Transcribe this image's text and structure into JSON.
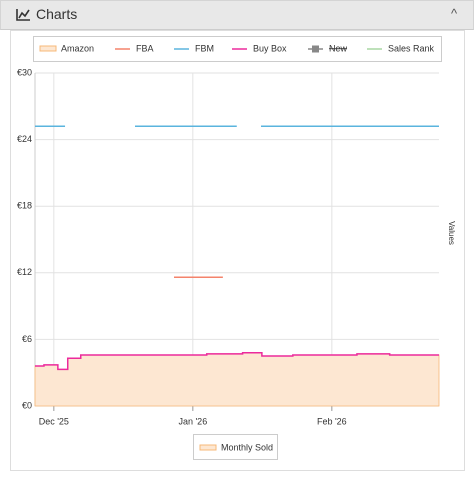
{
  "header": {
    "title": "Charts"
  },
  "chart_data": {
    "type": "line",
    "y_label": "Values",
    "xlim": [
      -4.2,
      85.9
    ],
    "xticks": [
      {
        "value": 0,
        "label": "Dec '25"
      },
      {
        "value": 31,
        "label": "Jan '26"
      },
      {
        "value": 62,
        "label": "Feb '26"
      }
    ],
    "ylim": [
      0,
      30
    ],
    "yticks": [
      {
        "value": 0,
        "label": "€0"
      },
      {
        "value": 6,
        "label": "€6"
      },
      {
        "value": 12,
        "label": "€12"
      },
      {
        "value": 18,
        "label": "€18"
      },
      {
        "value": 24,
        "label": "€24"
      },
      {
        "value": 30,
        "label": "€30"
      }
    ],
    "grid": true,
    "series": [
      {
        "name": "Amazon",
        "type": "area",
        "color": "#f7b878",
        "fill": "#fde7d2",
        "x": [
          -4.2,
          -2.2,
          -2.2,
          0.9,
          0.9,
          3.1,
          3.1,
          6.0,
          6.0,
          34.1,
          34.1,
          42.1,
          42.1,
          46.4,
          46.4,
          53.3,
          53.3,
          67.6,
          67.6,
          74.9,
          74.9,
          85.9
        ],
        "values": [
          3.6,
          3.6,
          3.7,
          3.7,
          3.3,
          3.3,
          4.3,
          4.3,
          4.6,
          4.6,
          4.7,
          4.7,
          4.8,
          4.8,
          4.5,
          4.5,
          4.6,
          4.6,
          4.7,
          4.7,
          4.6,
          4.6
        ]
      },
      {
        "name": "FBA",
        "type": "line",
        "color": "#f4836b",
        "x": [
          26.8,
          37.7
        ],
        "values": [
          11.6,
          11.6
        ]
      },
      {
        "name": "FBM",
        "type": "line",
        "color": "#5ab4de",
        "x": [
          -4.2,
          2.5,
          10,
          18.1,
          40.8,
          43,
          46.2,
          85.9
        ],
        "values": [
          25.2,
          25.2,
          null,
          25.2,
          25.2,
          null,
          25.2,
          25.2
        ]
      },
      {
        "name": "Buy Box",
        "type": "line",
        "color": "#ec2a9c",
        "x": [
          -4.2,
          -2.2,
          -2.2,
          0.9,
          0.9,
          3.1,
          3.1,
          6.0,
          6.0,
          34.1,
          34.1,
          42.1,
          42.1,
          46.4,
          46.4,
          53.3,
          53.3,
          67.6,
          67.6,
          74.9,
          74.9,
          85.9
        ],
        "values": [
          3.6,
          3.6,
          3.7,
          3.7,
          3.3,
          3.3,
          4.3,
          4.3,
          4.6,
          4.6,
          4.7,
          4.7,
          4.8,
          4.8,
          4.5,
          4.5,
          4.6,
          4.6,
          4.7,
          4.7,
          4.6,
          4.6
        ]
      },
      {
        "name": "New",
        "type": "line",
        "color": "#888888",
        "marker": "square",
        "hidden": true,
        "x": [],
        "values": []
      },
      {
        "name": "Sales Rank",
        "type": "line",
        "color": "#a9d7a3",
        "x": [],
        "values": []
      },
      {
        "name": "Monthly Sold",
        "type": "bar",
        "color": "#f7b878",
        "legend": "bottom",
        "x": [],
        "values": []
      }
    ]
  }
}
